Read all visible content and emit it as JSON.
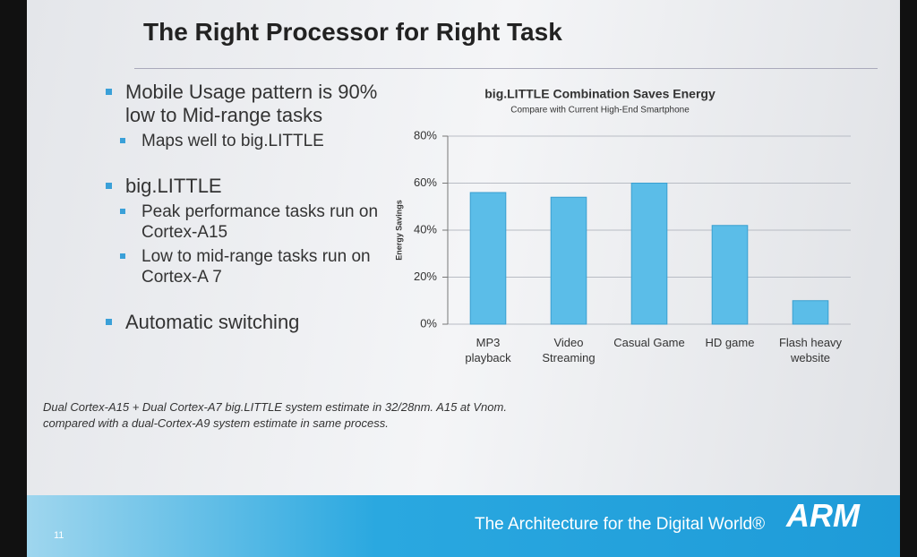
{
  "title": "The Right Processor for Right Task",
  "bullets": [
    {
      "text": "Mobile Usage pattern is 90% low to Mid-range tasks",
      "sub": [
        "Maps well to big.LITTLE"
      ]
    },
    {
      "text": "big.LITTLE",
      "sub": [
        "Peak performance tasks run on Cortex-A15",
        "Low to mid-range tasks run on Cortex-A 7"
      ]
    },
    {
      "text": "Automatic switching",
      "sub": []
    }
  ],
  "footnote": [
    "Dual Cortex-A15 + Dual Cortex-A7 big.LITTLE system estimate in 32/28nm. A15 at Vnom.",
    "compared with a dual-Cortex-A9 system estimate in same process."
  ],
  "footer": {
    "tagline": "The Architecture for the Digital World®",
    "logo": "ARM",
    "page_number": 11
  },
  "chart_data": {
    "type": "bar",
    "title": "big.LITTLE Combination Saves Energy",
    "subtitle": "Compare with Current High-End Smartphone",
    "y_label": "Energy Savings",
    "categories": [
      "MP3 playback",
      "Video Streaming",
      "Casual Game",
      "HD game",
      "Flash heavy website"
    ],
    "values": [
      56,
      54,
      60,
      42,
      10
    ],
    "color": "#5bbde8",
    "ylim": [
      0,
      80
    ],
    "yticks": [
      {
        "value": 0,
        "label": "0%"
      },
      {
        "value": 20,
        "label": "20%"
      },
      {
        "value": 40,
        "label": "40%"
      },
      {
        "value": 60,
        "label": "60%"
      },
      {
        "value": 80,
        "label": "80%"
      }
    ],
    "grid": true
  }
}
